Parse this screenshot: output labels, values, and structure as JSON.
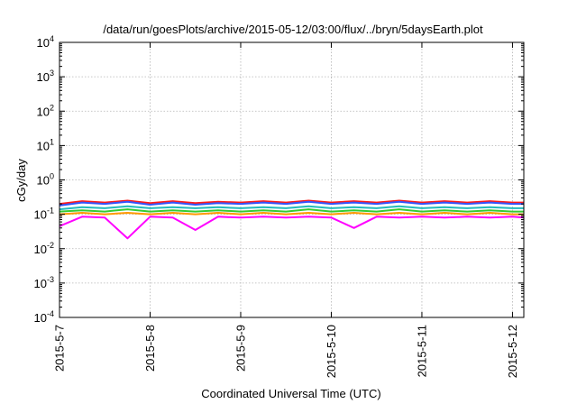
{
  "chart_data": {
    "type": "line",
    "title": "/data/run/goesPlots/archive/2015-05-12/03:00/flux/../bryn/5daysEarth.plot",
    "xlabel": "Coordinated Universal Time (UTC)",
    "ylabel": "cGy/day",
    "xscale": "time",
    "yscale": "log",
    "xlim": [
      "2015-05-07T00:00",
      "2015-05-12T03:00"
    ],
    "ylim": [
      0.0001,
      10000
    ],
    "grid": true,
    "legend": "none",
    "x_ticks": [
      "2015-5-7",
      "2015-5-8",
      "2015-5-9",
      "2015-5-10",
      "2015-5-11",
      "2015-5-12"
    ],
    "y_ticks": [
      {
        "base": "10",
        "exp": "-4",
        "value": 0.0001
      },
      {
        "base": "10",
        "exp": "-3",
        "value": 0.001
      },
      {
        "base": "10",
        "exp": "-2",
        "value": 0.01
      },
      {
        "base": "10",
        "exp": "-1",
        "value": 0.1
      },
      {
        "base": "10",
        "exp": "0",
        "value": 1
      },
      {
        "base": "10",
        "exp": "1",
        "value": 10
      },
      {
        "base": "10",
        "exp": "2",
        "value": 100
      },
      {
        "base": "10",
        "exp": "3",
        "value": 1000
      },
      {
        "base": "10",
        "exp": "4",
        "value": 10000
      }
    ],
    "x": [
      "2015-05-07T00:00",
      "2015-05-07T06:00",
      "2015-05-07T12:00",
      "2015-05-07T18:00",
      "2015-05-08T00:00",
      "2015-05-08T06:00",
      "2015-05-08T12:00",
      "2015-05-08T18:00",
      "2015-05-09T00:00",
      "2015-05-09T06:00",
      "2015-05-09T12:00",
      "2015-05-09T18:00",
      "2015-05-10T00:00",
      "2015-05-10T06:00",
      "2015-05-10T12:00",
      "2015-05-10T18:00",
      "2015-05-11T00:00",
      "2015-05-11T06:00",
      "2015-05-11T12:00",
      "2015-05-11T18:00",
      "2015-05-12T00:00",
      "2015-05-12T03:00"
    ],
    "series": [
      {
        "color": "#ff1a1a",
        "values": [
          0.2,
          0.24,
          0.22,
          0.25,
          0.21,
          0.24,
          0.21,
          0.23,
          0.22,
          0.24,
          0.22,
          0.25,
          0.22,
          0.24,
          0.22,
          0.25,
          0.22,
          0.24,
          0.22,
          0.24,
          0.22,
          0.22
        ]
      },
      {
        "color": "#3355ff",
        "values": [
          0.18,
          0.22,
          0.2,
          0.23,
          0.19,
          0.22,
          0.19,
          0.21,
          0.2,
          0.22,
          0.2,
          0.23,
          0.2,
          0.22,
          0.2,
          0.23,
          0.2,
          0.22,
          0.2,
          0.22,
          0.2,
          0.2
        ]
      },
      {
        "color": "#22bbbb",
        "values": [
          0.14,
          0.16,
          0.15,
          0.17,
          0.15,
          0.16,
          0.15,
          0.16,
          0.15,
          0.16,
          0.15,
          0.17,
          0.15,
          0.16,
          0.15,
          0.17,
          0.15,
          0.16,
          0.15,
          0.16,
          0.15,
          0.15
        ]
      },
      {
        "color": "#33cc33",
        "values": [
          0.12,
          0.13,
          0.12,
          0.14,
          0.12,
          0.13,
          0.12,
          0.13,
          0.12,
          0.13,
          0.12,
          0.14,
          0.12,
          0.13,
          0.12,
          0.14,
          0.12,
          0.13,
          0.12,
          0.13,
          0.12,
          0.12
        ]
      },
      {
        "color": "#ff9900",
        "values": [
          0.1,
          0.11,
          0.1,
          0.11,
          0.1,
          0.11,
          0.1,
          0.11,
          0.1,
          0.11,
          0.1,
          0.11,
          0.1,
          0.11,
          0.1,
          0.11,
          0.1,
          0.11,
          0.1,
          0.11,
          0.1,
          0.1
        ]
      },
      {
        "color": "#ff00ff",
        "values": [
          0.045,
          0.085,
          0.08,
          0.02,
          0.085,
          0.08,
          0.035,
          0.085,
          0.08,
          0.085,
          0.08,
          0.085,
          0.08,
          0.04,
          0.085,
          0.08,
          0.085,
          0.08,
          0.085,
          0.08,
          0.085,
          0.08
        ]
      }
    ]
  }
}
